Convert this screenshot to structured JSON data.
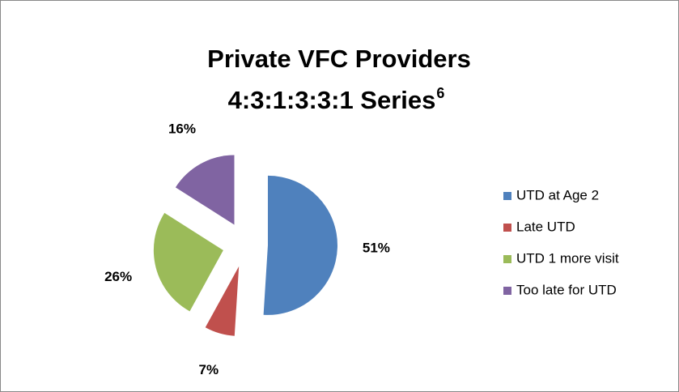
{
  "chart_data": {
    "type": "pie",
    "title": [
      "Private VFC Providers",
      "4:3:1:3:3:1 Series"
    ],
    "title_superscript": "6",
    "categories": [
      "UTD at Age 2",
      "Late UTD",
      "UTD 1 more visit",
      "Too late for UTD"
    ],
    "values": [
      51,
      7,
      26,
      16
    ],
    "value_labels": [
      "51%",
      "7%",
      "26%",
      "16%"
    ],
    "colors": [
      "#4f81bd",
      "#c0504d",
      "#9bbb59",
      "#8064a2"
    ],
    "legend": "right"
  }
}
